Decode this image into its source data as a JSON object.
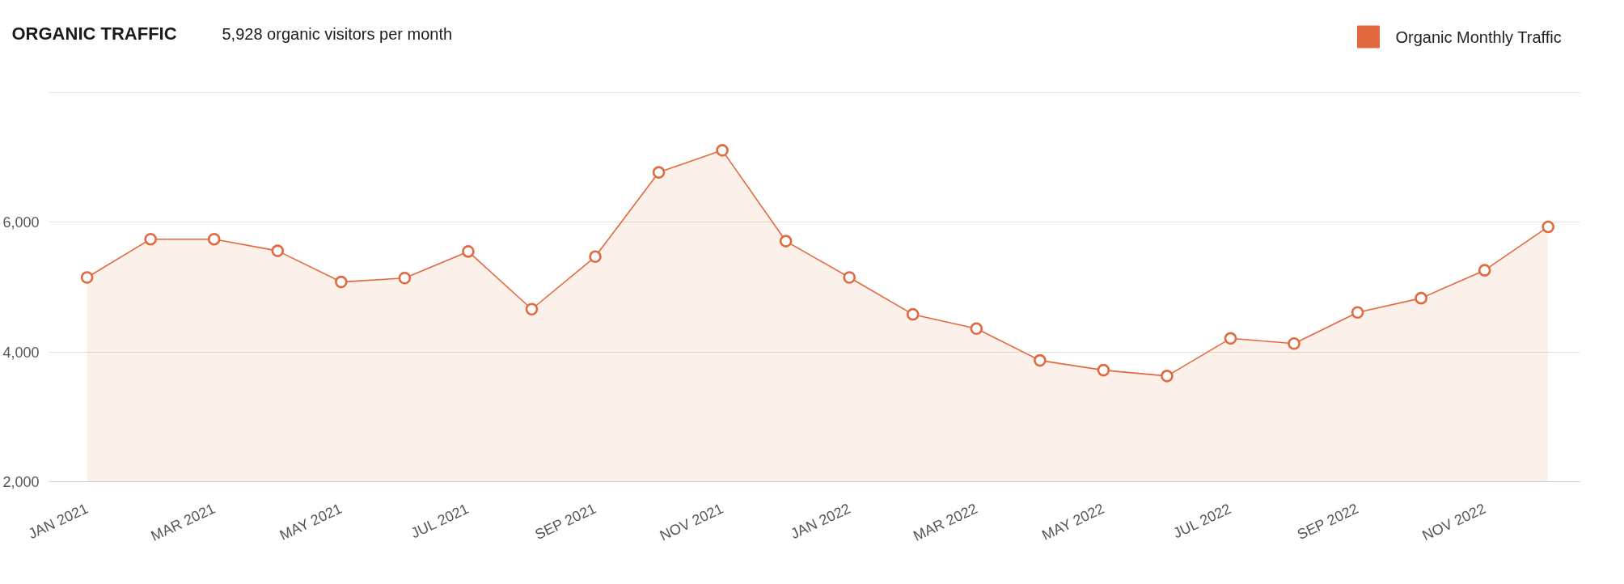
{
  "chart_data": {
    "type": "area",
    "title": "ORGANIC TRAFFIC",
    "subtitle": "5,928 organic visitors per month",
    "categories": [
      "JAN 2021",
      null,
      "MAR 2021",
      null,
      "MAY 2021",
      null,
      "JUL 2021",
      null,
      "SEP 2021",
      null,
      "NOV 2021",
      null,
      "JAN 2022",
      null,
      "MAR 2022",
      null,
      "MAY 2022",
      null,
      "JUL 2022",
      null,
      "SEP 2022",
      null,
      "NOV 2022",
      null
    ],
    "series": [
      {
        "name": "Organic Monthly Traffic",
        "color": "#e2693f",
        "values": [
          5150,
          5740,
          5740,
          5560,
          5080,
          5140,
          5550,
          4660,
          5470,
          6770,
          7110,
          5710,
          5150,
          4580,
          4360,
          3870,
          3720,
          3630,
          4210,
          4130,
          4610,
          4830,
          5260,
          5930
        ]
      }
    ],
    "ylim": [
      2000,
      8000
    ],
    "yticks": [
      {
        "value": 2000,
        "label": "2,000"
      },
      {
        "value": 4000,
        "label": "4,000"
      },
      {
        "value": 6000,
        "label": "6,000"
      },
      {
        "value": 8000,
        "label": null
      }
    ],
    "grid": "y",
    "legend": "top right",
    "marker": "circle"
  }
}
